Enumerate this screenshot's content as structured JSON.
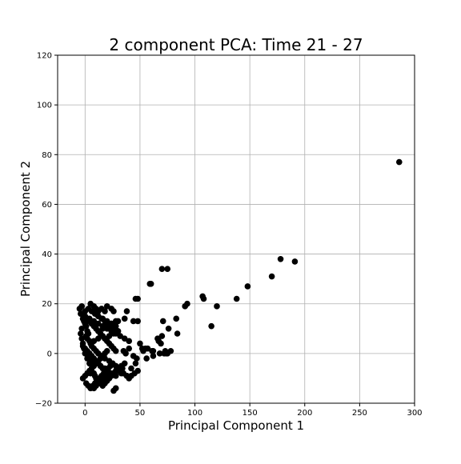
{
  "chart_data": {
    "type": "scatter",
    "title": "2 component PCA: Time 21 - 27",
    "xlabel": "Principal Component 1",
    "ylabel": "Principal Component 2",
    "xlim": [
      -25,
      300
    ],
    "ylim": [
      -20,
      120
    ],
    "xticks": [
      0,
      50,
      100,
      150,
      200,
      250,
      300
    ],
    "yticks": [
      -20,
      0,
      20,
      40,
      60,
      80,
      100,
      120
    ],
    "xtick_labels": [
      "0",
      "50",
      "100",
      "150",
      "200",
      "250",
      "300"
    ],
    "ytick_labels": [
      "−20",
      "0",
      "20",
      "40",
      "60",
      "80",
      "100",
      "120"
    ],
    "grid": true,
    "marker_color": "#000000",
    "series": [
      {
        "x": [
          -3,
          -5,
          -4,
          -2,
          -1,
          0,
          1,
          -3,
          2,
          3,
          1,
          2,
          4,
          5,
          6,
          8,
          10,
          12,
          15,
          18,
          22,
          25,
          28,
          30,
          32,
          35,
          38,
          40,
          42,
          45,
          48,
          -4,
          -3,
          -2,
          -1,
          0,
          2,
          4,
          6,
          8,
          10,
          12,
          14,
          16,
          18,
          20,
          22,
          24,
          26,
          28,
          30,
          33,
          36,
          0,
          2,
          4,
          6,
          8,
          10,
          12,
          14,
          16,
          18,
          20,
          22,
          24,
          26,
          28,
          1,
          3,
          5,
          7,
          9,
          11,
          13,
          15,
          17,
          19,
          21,
          23,
          25,
          -2,
          0,
          2,
          4,
          6,
          8,
          10,
          12,
          14,
          16,
          18,
          20,
          22,
          0,
          3,
          6,
          9,
          12,
          15,
          18,
          21,
          24,
          27,
          30,
          5,
          8,
          10,
          12,
          15,
          18,
          20,
          8,
          10,
          12,
          14,
          40,
          35,
          37,
          44,
          47,
          30,
          33,
          38,
          42,
          46,
          26,
          28,
          16,
          20,
          24,
          28,
          18,
          22,
          26,
          30,
          17,
          21,
          25,
          28,
          6,
          10,
          14,
          18,
          8,
          12,
          16,
          5,
          9,
          -2,
          0,
          2,
          4,
          6,
          8,
          10,
          12,
          14,
          16,
          18,
          20,
          4,
          8,
          12,
          16,
          20,
          24,
          28,
          32,
          36,
          40,
          10,
          14,
          18,
          22,
          26,
          30,
          34,
          12,
          16,
          20,
          24,
          28,
          60,
          59,
          70,
          75,
          46,
          48,
          71,
          76,
          70,
          66,
          67,
          69,
          73,
          55,
          52,
          56,
          72,
          75,
          61,
          62,
          83,
          84,
          91,
          93,
          107,
          108,
          120,
          115,
          138,
          148,
          170,
          178,
          191,
          286,
          38,
          36,
          24,
          26,
          30,
          44,
          48,
          50,
          53,
          57,
          62,
          68,
          74,
          78
        ],
        "y": [
          19,
          18,
          16,
          14,
          13,
          12,
          11,
          10,
          9,
          8,
          7,
          6,
          5,
          4,
          3,
          2,
          1,
          0,
          -1,
          -2,
          -3,
          -4,
          -5,
          -6,
          -7,
          -8,
          -9,
          -10,
          -9,
          -8,
          -7,
          8,
          6,
          4,
          2,
          0,
          -2,
          -4,
          -6,
          -8,
          -10,
          -11,
          -12,
          -13,
          -12,
          -11,
          -10,
          -9,
          -8,
          -7,
          -6,
          -5,
          -4,
          15,
          14,
          13,
          12,
          11,
          10,
          9,
          8,
          7,
          6,
          5,
          4,
          3,
          2,
          1,
          -12,
          -13,
          -14,
          -13,
          -12,
          -11,
          -10,
          -9,
          -8,
          -7,
          -6,
          -5,
          -4,
          3,
          2,
          1,
          0,
          -1,
          -2,
          -3,
          -4,
          -5,
          -6,
          -7,
          -8,
          -9,
          17,
          18,
          17,
          16,
          15,
          14,
          13,
          12,
          11,
          10,
          9,
          20,
          19,
          18,
          17,
          18,
          17,
          19,
          -14,
          -13,
          -12,
          -11,
          2,
          1,
          0,
          -1,
          -2,
          -7,
          -8,
          -9,
          -6,
          -4,
          -15,
          -14,
          10,
          11,
          12,
          13,
          6,
          7,
          8,
          9,
          -6,
          -7,
          -8,
          -9,
          -3,
          -4,
          -5,
          -6,
          5,
          6,
          7,
          -8,
          -9,
          -10,
          -9,
          -8,
          -7,
          -6,
          -5,
          -4,
          -3,
          -2,
          -1,
          0,
          1,
          14,
          13,
          12,
          11,
          10,
          9,
          8,
          7,
          6,
          5,
          -12,
          -11,
          -10,
          -9,
          -8,
          -7,
          -6,
          15,
          14,
          13,
          12,
          11,
          28,
          28,
          34,
          34,
          22,
          22,
          13,
          10,
          7,
          6,
          5,
          4,
          1,
          2,
          2,
          -2,
          0,
          0,
          1,
          1,
          14,
          8,
          19,
          20,
          23,
          22,
          19,
          11,
          22,
          27,
          31,
          38,
          37,
          77,
          17,
          14,
          18,
          17,
          13,
          13,
          13,
          4,
          1,
          2,
          -1,
          0,
          0,
          1
        ]
      }
    ]
  }
}
